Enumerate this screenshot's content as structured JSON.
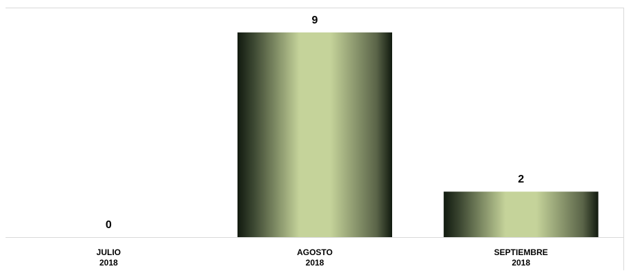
{
  "chart_data": {
    "type": "bar",
    "categories": [
      [
        "JULIO",
        "2018"
      ],
      [
        "AGOSTO",
        "2018"
      ],
      [
        "SEPTIEMBRE",
        "2018"
      ]
    ],
    "values": [
      0,
      9,
      2
    ],
    "data_labels": [
      "0",
      "9",
      "2"
    ],
    "title": "",
    "xlabel": "",
    "ylabel": "",
    "ylim": [
      0,
      10
    ],
    "grid": false,
    "legend": "none",
    "colors": {
      "bar_light": "#c5d39a",
      "bar_dark": "#111a0f",
      "axis": "#d9d9d9"
    }
  }
}
